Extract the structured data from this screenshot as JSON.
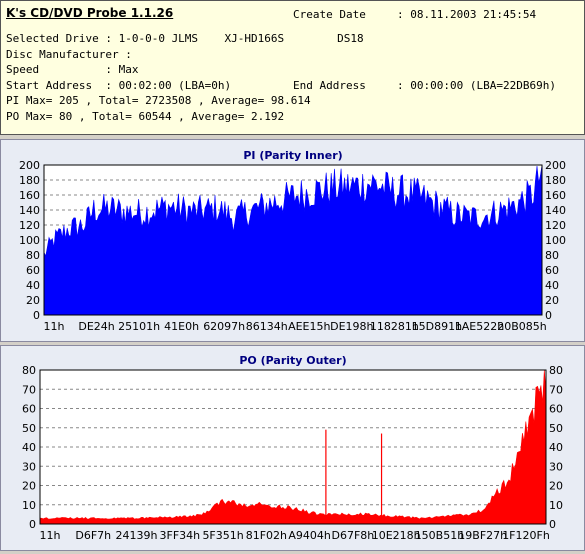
{
  "header": {
    "app_title": "K's CD/DVD Probe 1.1.26",
    "create_date_label": "Create Date",
    "create_date_value": ": 08.11.2003 21:45:54",
    "selected_drive": "Selected Drive : 1-0-0-0 JLMS    XJ-HD166S        DS18",
    "disc_manufacturer": "Disc Manufacturer :",
    "speed": "Speed          : Max",
    "start_address": "Start Address  : 00:02:00 (LBA=0h)",
    "end_address_label": "End Address",
    "end_address_value": ": 00:00:00 (LBA=22DB69h)",
    "pi_summary": "PI Max= 205 , Total= 2723508 , Average= 98.614",
    "po_summary": "PO Max= 80 , Total= 60544 , Average= 2.192"
  },
  "chart_data": [
    {
      "type": "area",
      "title": "PI (Parity Inner)",
      "color": "#0000ff",
      "ylim": [
        0,
        200
      ],
      "yticks": [
        0,
        20,
        40,
        60,
        80,
        100,
        120,
        140,
        160,
        180,
        200
      ],
      "x_tick_labels": [
        "11h",
        "DE24h",
        "25101h",
        "41E0h",
        "62097h",
        "86134h",
        "AEE15h",
        "DE198h",
        "118281h",
        "15D891h",
        "1AE522h",
        "20B085h"
      ],
      "grid": true,
      "profile": [
        [
          0,
          80
        ],
        [
          2,
          100
        ],
        [
          5,
          115
        ],
        [
          8,
          120
        ],
        [
          10,
          140
        ],
        [
          13,
          142
        ],
        [
          16,
          138
        ],
        [
          20,
          136
        ],
        [
          25,
          145
        ],
        [
          30,
          138
        ],
        [
          35,
          142
        ],
        [
          38,
          130
        ],
        [
          42,
          140
        ],
        [
          46,
          150
        ],
        [
          50,
          158
        ],
        [
          54,
          165
        ],
        [
          58,
          170
        ],
        [
          62,
          172
        ],
        [
          66,
          176
        ],
        [
          70,
          165
        ],
        [
          74,
          162
        ],
        [
          78,
          150
        ],
        [
          82,
          135
        ],
        [
          86,
          130
        ],
        [
          90,
          135
        ],
        [
          94,
          145
        ],
        [
          98,
          160
        ],
        [
          100,
          192
        ]
      ]
    },
    {
      "type": "area",
      "title": "PO (Parity Outer)",
      "color": "#ff0000",
      "ylim": [
        0,
        80
      ],
      "yticks": [
        0,
        10,
        20,
        30,
        40,
        50,
        60,
        70,
        80
      ],
      "x_tick_labels": [
        "11h",
        "D6F7h",
        "24139h",
        "3FF34h",
        "5F351h",
        "81F02h",
        "A9404h",
        "D67F8h",
        "10E218h",
        "150B51h",
        "19BF27h",
        "1F120Fh"
      ],
      "grid": true,
      "profile": [
        [
          0,
          3
        ],
        [
          10,
          3
        ],
        [
          20,
          3
        ],
        [
          30,
          4
        ],
        [
          33,
          6
        ],
        [
          36,
          12
        ],
        [
          40,
          10
        ],
        [
          45,
          10
        ],
        [
          50,
          8
        ],
        [
          55,
          5
        ],
        [
          60,
          5
        ],
        [
          65,
          5
        ],
        [
          70,
          4
        ],
        [
          75,
          3
        ],
        [
          80,
          4
        ],
        [
          85,
          5
        ],
        [
          88,
          8
        ],
        [
          90,
          15
        ],
        [
          93,
          25
        ],
        [
          95,
          40
        ],
        [
          97,
          55
        ],
        [
          99,
          70
        ],
        [
          100,
          80
        ]
      ],
      "spikes": [
        [
          56.5,
          49
        ],
        [
          67.5,
          47
        ]
      ]
    }
  ]
}
